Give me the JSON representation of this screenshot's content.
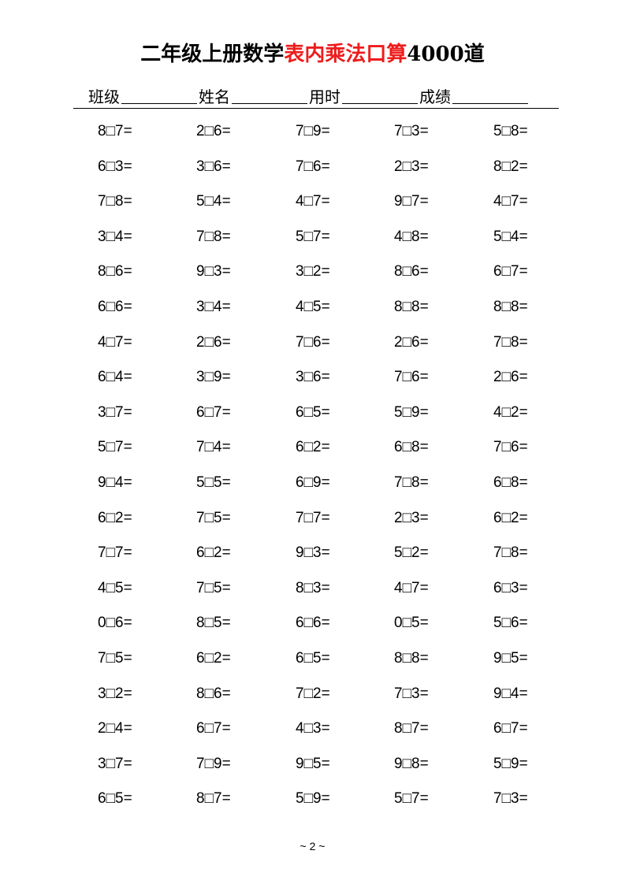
{
  "title": {
    "part1": "二年级上册数学",
    "part2": "表内乘法口算",
    "part3": "4000道",
    "accent_color": "#ee1c1c"
  },
  "info": {
    "class_label": "班级",
    "name_label": "姓名",
    "time_label": "用时",
    "score_label": "成绩"
  },
  "problems": [
    [
      "8□7=",
      "2□6=",
      "7□9=",
      "7□3=",
      "5□8="
    ],
    [
      "6□3=",
      "3□6=",
      "7□6=",
      "2□3=",
      "8□2="
    ],
    [
      "7□8=",
      "5□4=",
      "4□7=",
      "9□7=",
      "4□7="
    ],
    [
      "3□4=",
      "7□8=",
      "5□7=",
      "4□8=",
      "5□4="
    ],
    [
      "8□6=",
      "9□3=",
      "3□2=",
      "8□6=",
      "6□7="
    ],
    [
      "6□6=",
      "3□4=",
      "4□5=",
      "8□8=",
      "8□8="
    ],
    [
      "4□7=",
      "2□6=",
      "7□6=",
      "2□6=",
      "7□8="
    ],
    [
      "6□4=",
      "3□9=",
      "3□6=",
      "7□6=",
      "2□6="
    ],
    [
      "3□7=",
      "6□7=",
      "6□5=",
      "5□9=",
      "4□2="
    ],
    [
      "5□7=",
      "7□4=",
      "6□2=",
      "6□8=",
      "7□6="
    ],
    [
      "9□4=",
      "5□5=",
      "6□9=",
      "7□8=",
      "6□8="
    ],
    [
      "6□2=",
      "7□5=",
      "7□7=",
      "2□3=",
      "6□2="
    ],
    [
      "7□7=",
      "6□2=",
      "9□3=",
      "5□2=",
      "7□8="
    ],
    [
      "4□5=",
      "7□5=",
      "8□3=",
      "4□7=",
      "6□3="
    ],
    [
      "0□6=",
      "8□5=",
      "6□6=",
      "0□5=",
      "5□6="
    ],
    [
      "7□5=",
      "6□2=",
      "6□5=",
      "8□8=",
      "9□5="
    ],
    [
      "3□2=",
      "8□6=",
      "7□2=",
      "7□3=",
      "9□4="
    ],
    [
      "2□4=",
      "6□7=",
      "4□3=",
      "8□7=",
      "6□7="
    ],
    [
      "3□7=",
      "7□9=",
      "9□5=",
      "9□8=",
      "5□9="
    ],
    [
      "6□5=",
      "8□7=",
      "5□9=",
      "5□7=",
      "7□3="
    ]
  ],
  "footer": {
    "page": "~ 2 ~"
  }
}
